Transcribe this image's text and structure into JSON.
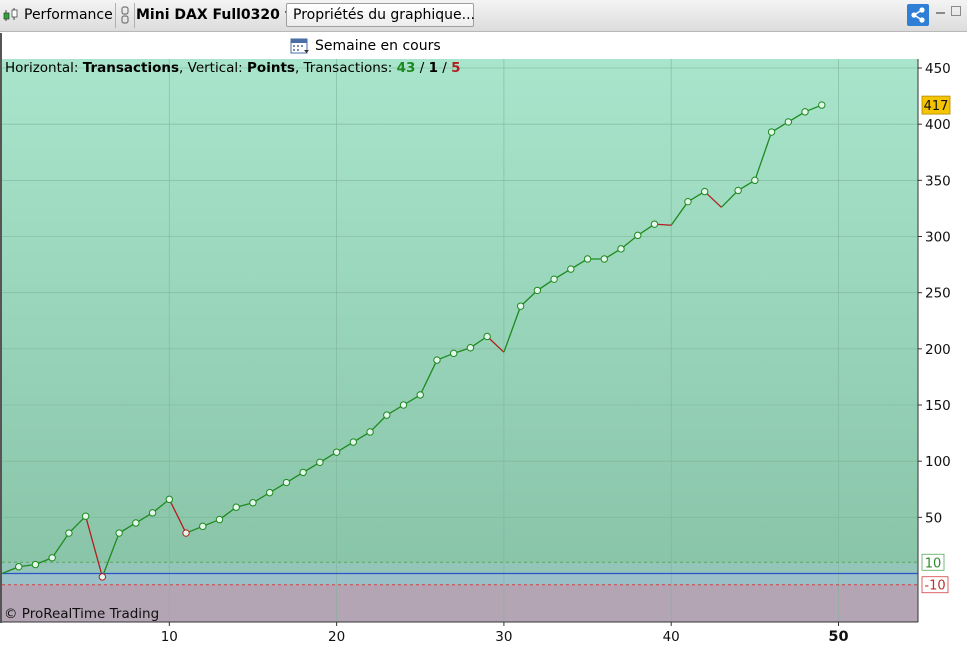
{
  "toolbar": {
    "performance_label": "Performance",
    "instrument": "Mini DAX Full0320",
    "properties_label": "Propriétés du graphique..."
  },
  "period": {
    "label": "Semaine en cours"
  },
  "info": {
    "horizontal_label": "Horizontal:",
    "horizontal_value": "Transactions",
    "vertical_label": "Vertical:",
    "vertical_value": "Points",
    "transactions_label": "Transactions:",
    "wins": "43",
    "neutral": "1",
    "losses": "5",
    "slash": "/"
  },
  "copyright": "© ProRealTime Trading",
  "colors": {
    "bg_top": "#a8e5cc",
    "bg_bottom": "#86c1a5",
    "band_blue": "#a9bde6",
    "band_loss": "#b4a5b4",
    "win_line": "#1e8a1e",
    "loss_line": "#b11e1e",
    "last_value_badge": "#f5c400",
    "zero_line": "#2a52c9"
  },
  "chart_data": {
    "type": "line",
    "title": "",
    "xlabel": "Transactions",
    "ylabel": "Points",
    "xlim": [
      0,
      55
    ],
    "ylim": [
      -42,
      458
    ],
    "x_ticks": [
      10,
      20,
      30,
      40,
      50
    ],
    "x_tick_labels": [
      "10",
      "20",
      "30",
      "40",
      "50"
    ],
    "y_ticks": [
      50,
      100,
      150,
      200,
      250,
      300,
      350,
      400,
      450
    ],
    "y_tick_labels": [
      "50",
      "100",
      "150",
      "200",
      "250",
      "300",
      "350",
      "400",
      "450"
    ],
    "grid": true,
    "last_value_label": "417",
    "upper_threshold": {
      "value": 10,
      "label": "10"
    },
    "lower_threshold": {
      "value": -10,
      "label": "-10"
    },
    "series": [
      {
        "x": [
          0,
          1,
          2,
          3,
          4,
          5,
          6,
          7,
          8,
          9,
          10,
          11,
          12,
          13,
          14,
          15,
          16,
          17,
          18,
          19,
          20,
          21,
          22,
          23,
          24,
          25,
          26,
          27,
          28,
          29,
          30,
          31,
          32,
          33,
          34,
          35,
          36,
          37,
          38,
          39,
          40,
          41,
          42,
          43,
          44,
          45,
          46,
          47,
          48,
          49
        ],
        "values": [
          0,
          6,
          8,
          14,
          36,
          51,
          -3,
          36,
          45,
          54,
          66,
          36,
          42,
          48,
          59,
          63,
          72,
          81,
          90,
          99,
          108,
          117,
          126,
          141,
          150,
          159,
          190,
          196,
          201,
          211,
          197,
          238,
          252,
          262,
          271,
          280,
          280,
          289,
          301,
          311,
          310,
          331,
          340,
          326,
          341,
          350,
          393,
          402,
          411,
          417
        ]
      }
    ]
  }
}
